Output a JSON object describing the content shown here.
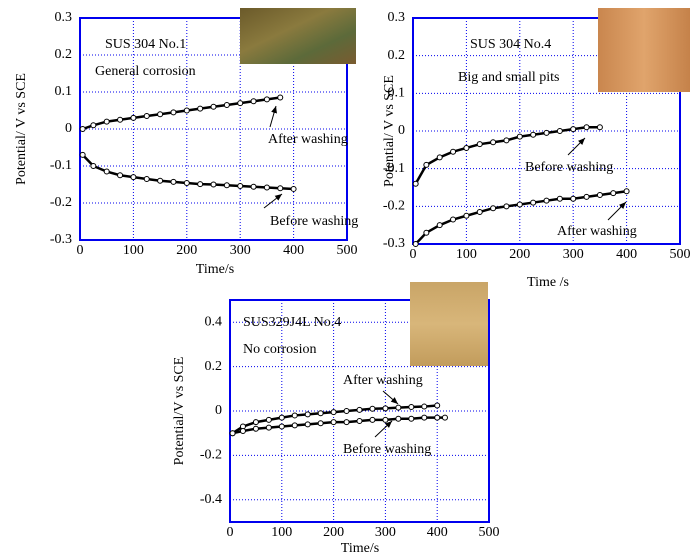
{
  "chart_data": [
    {
      "type": "scatter-line",
      "title": "SUS 304 No.1",
      "subtitle": "General corrosion",
      "x_label": "Time/s",
      "y_label": "Potential/ V vs SCE",
      "xlim": [
        0,
        500
      ],
      "xticks": [
        0,
        100,
        200,
        300,
        400,
        500
      ],
      "ylim": [
        -0.3,
        0.3
      ],
      "yticks": [
        -0.3,
        -0.2,
        -0.1,
        0,
        0.1,
        0.2,
        0.3
      ],
      "grid": true,
      "frame_color": "#0000ee",
      "series": [
        {
          "name": "After washing",
          "color": "#000000",
          "x": [
            5,
            25,
            50,
            75,
            100,
            125,
            150,
            175,
            200,
            225,
            250,
            275,
            300,
            325,
            350,
            375
          ],
          "values": [
            0.0,
            0.01,
            0.02,
            0.025,
            0.03,
            0.035,
            0.04,
            0.045,
            0.05,
            0.055,
            0.06,
            0.065,
            0.07,
            0.075,
            0.08,
            0.085
          ]
        },
        {
          "name": "Before washing",
          "color": "#000000",
          "x": [
            5,
            25,
            50,
            75,
            100,
            125,
            150,
            175,
            200,
            225,
            250,
            275,
            300,
            325,
            350,
            375,
            400
          ],
          "values": [
            -0.07,
            -0.1,
            -0.115,
            -0.125,
            -0.13,
            -0.135,
            -0.14,
            -0.143,
            -0.146,
            -0.149,
            -0.15,
            -0.152,
            -0.154,
            -0.156,
            -0.158,
            -0.16,
            -0.162
          ]
        }
      ]
    },
    {
      "type": "scatter-line",
      "title": "SUS 304 No.4",
      "subtitle": "Big and small pits",
      "x_label": "Time /s",
      "y_label": "Potential/ V vs SCE",
      "xlim": [
        0,
        500
      ],
      "xticks": [
        0,
        100,
        200,
        300,
        400,
        500
      ],
      "ylim": [
        -0.3,
        0.3
      ],
      "yticks": [
        -0.3,
        -0.2,
        -0.1,
        0,
        0.1,
        0.2,
        0.3
      ],
      "grid": true,
      "frame_color": "#0000ee",
      "series": [
        {
          "name": "Before washing",
          "color": "#000000",
          "x": [
            5,
            25,
            50,
            75,
            100,
            125,
            150,
            175,
            200,
            225,
            250,
            275,
            300,
            325,
            350
          ],
          "values": [
            -0.14,
            -0.09,
            -0.07,
            -0.055,
            -0.045,
            -0.035,
            -0.03,
            -0.025,
            -0.015,
            -0.01,
            -0.005,
            0,
            0.005,
            0.01,
            0.01
          ]
        },
        {
          "name": "After washing",
          "color": "#000000",
          "x": [
            5,
            25,
            50,
            75,
            100,
            125,
            150,
            175,
            200,
            225,
            250,
            275,
            300,
            325,
            350,
            375,
            400
          ],
          "values": [
            -0.3,
            -0.27,
            -0.25,
            -0.235,
            -0.225,
            -0.215,
            -0.205,
            -0.2,
            -0.195,
            -0.19,
            -0.185,
            -0.18,
            -0.18,
            -0.175,
            -0.17,
            -0.165,
            -0.16
          ]
        }
      ]
    },
    {
      "type": "scatter-line",
      "title": "SUS329J4L No.4",
      "subtitle": "No corrosion",
      "x_label": "Time/s",
      "y_label": "Potential/V vs SCE",
      "xlim": [
        0,
        500
      ],
      "xticks": [
        0,
        100,
        200,
        300,
        400,
        500
      ],
      "ylim": [
        -0.5,
        0.5
      ],
      "yticks": [
        -0.4,
        -0.2,
        0,
        0.2,
        0.4
      ],
      "grid": true,
      "frame_color": "#0000ee",
      "series": [
        {
          "name": "After washing",
          "color": "#000000",
          "x": [
            5,
            25,
            50,
            75,
            100,
            125,
            150,
            175,
            200,
            225,
            250,
            275,
            300,
            325,
            350,
            375,
            400
          ],
          "values": [
            -0.1,
            -0.07,
            -0.05,
            -0.04,
            -0.03,
            -0.02,
            -0.015,
            -0.01,
            -0.005,
            0,
            0.005,
            0.01,
            0.012,
            0.015,
            0.018,
            0.02,
            0.025
          ]
        },
        {
          "name": "Before washing",
          "color": "#000000",
          "x": [
            5,
            25,
            50,
            75,
            100,
            125,
            150,
            175,
            200,
            225,
            250,
            275,
            300,
            325,
            350,
            375,
            400,
            415
          ],
          "values": [
            -0.1,
            -0.09,
            -0.08,
            -0.075,
            -0.07,
            -0.065,
            -0.06,
            -0.055,
            -0.05,
            -0.05,
            -0.045,
            -0.04,
            -0.04,
            -0.035,
            -0.035,
            -0.03,
            -0.03,
            -0.03
          ]
        }
      ]
    }
  ]
}
